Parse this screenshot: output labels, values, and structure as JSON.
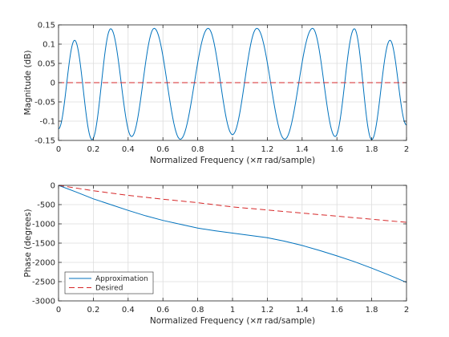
{
  "colors": {
    "approximation": "#0072BD",
    "desired": "#D62728",
    "grid": "#dddddd",
    "axis": "#262626",
    "background": "#ffffff"
  },
  "chart_data": [
    {
      "type": "line",
      "xlabel_prefix": "Normalized Frequency  (",
      "xlabel_symbol": "×π",
      "xlabel_suffix": " rad/sample)",
      "ylabel": "Magnitude (dB)",
      "xlim": [
        0,
        2
      ],
      "ylim": [
        -0.15,
        0.15
      ],
      "xticks": [
        "0",
        "0.2",
        "0.4",
        "0.6",
        "0.8",
        "1",
        "1.2",
        "1.4",
        "1.6",
        "1.8",
        "2"
      ],
      "yticks": [
        "-0.15",
        "-0.1",
        "-0.05",
        "0",
        "0.05",
        "0.1",
        "0.15"
      ],
      "grid": true,
      "series": [
        {
          "key": "approximation",
          "x": [
            0,
            0.0925,
            0.1925,
            0.3,
            0.42,
            0.55,
            0.7,
            0.86,
            1.0,
            1.14,
            1.3,
            1.46,
            1.59,
            1.7,
            1.8,
            1.905,
            2.0
          ],
          "y": [
            -0.12,
            0.11,
            -0.148,
            0.14,
            -0.14,
            0.141,
            -0.147,
            0.141,
            -0.135,
            0.141,
            -0.147,
            0.141,
            -0.14,
            0.14,
            -0.148,
            0.11,
            -0.11
          ]
        },
        {
          "key": "desired",
          "x": [
            0,
            2
          ],
          "y": [
            0,
            0
          ]
        }
      ]
    },
    {
      "type": "line",
      "xlabel_prefix": "Normalized Frequency  (",
      "xlabel_symbol": "×π",
      "xlabel_suffix": " rad/sample)",
      "ylabel": "Phase (degrees)",
      "xlim": [
        0,
        2
      ],
      "ylim": [
        -3000,
        0
      ],
      "xticks": [
        "0",
        "0.2",
        "0.4",
        "0.6",
        "0.8",
        "1",
        "1.2",
        "1.4",
        "1.6",
        "1.8",
        "2"
      ],
      "yticks": [
        "-3000",
        "-2500",
        "-2000",
        "-1500",
        "-1000",
        "-500",
        "0"
      ],
      "grid": true,
      "legend": {
        "position": "bottom-left",
        "entries": [
          "Approximation",
          "Desired"
        ]
      },
      "series": [
        {
          "key": "approximation",
          "name": "Approximation",
          "x": [
            0,
            0.1,
            0.2,
            0.3,
            0.4,
            0.5,
            0.6,
            0.7,
            0.8,
            0.9,
            1.0,
            1.1,
            1.2,
            1.3,
            1.4,
            1.5,
            1.6,
            1.7,
            1.8,
            1.9,
            2.0
          ],
          "y": [
            0,
            -170,
            -350,
            -500,
            -650,
            -790,
            -910,
            -1010,
            -1110,
            -1180,
            -1240,
            -1300,
            -1360,
            -1450,
            -1560,
            -1690,
            -1830,
            -1980,
            -2150,
            -2330,
            -2520
          ]
        },
        {
          "key": "desired",
          "name": "Desired",
          "x": [
            0,
            0.2,
            0.4,
            0.6,
            0.8,
            1.0,
            1.2,
            1.4,
            1.6,
            1.8,
            2.0
          ],
          "y": [
            0,
            -140,
            -260,
            -360,
            -450,
            -560,
            -640,
            -720,
            -800,
            -880,
            -960
          ]
        }
      ]
    }
  ]
}
